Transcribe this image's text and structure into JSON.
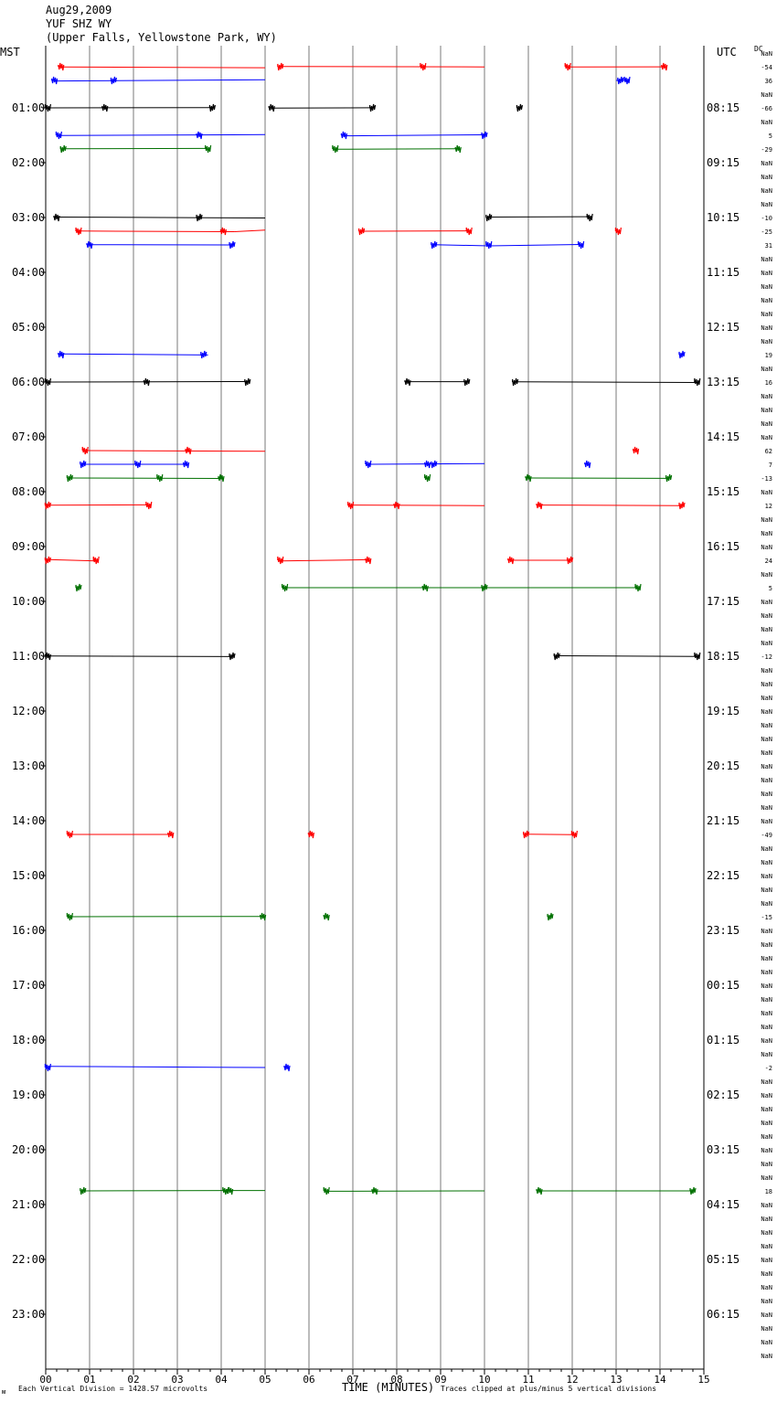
{
  "header": {
    "date": "Aug29,2009",
    "station": "YUF SHZ WY",
    "location": "(Upper Falls, Yellowstone Park, WY)"
  },
  "axes": {
    "left_title": "MST",
    "right_title": "UTC",
    "dc_title": "DC",
    "x_title": "TIME (MINUTES)",
    "scale_note": "Each Vertical Division = 1428.57 microvolts",
    "clip_note": "Traces clipped at plus/minus 5 vertical divisions",
    "corner_mark": "ᴍ"
  },
  "chart_data": {
    "type": "helicorder",
    "title": "YUF SHZ WY",
    "x_ticks": [
      "00",
      "01",
      "02",
      "03",
      "04",
      "05",
      "06",
      "07",
      "08",
      "09",
      "10",
      "11",
      "12",
      "13",
      "14",
      "15"
    ],
    "xlim": [
      0,
      15
    ],
    "mst_labels": [
      "01:00",
      "02:00",
      "03:00",
      "04:00",
      "05:00",
      "06:00",
      "07:00",
      "08:00",
      "09:00",
      "10:00",
      "11:00",
      "12:00",
      "13:00",
      "14:00",
      "15:00",
      "16:00",
      "17:00",
      "18:00",
      "19:00",
      "20:00",
      "21:00",
      "22:00",
      "23:00"
    ],
    "utc_labels": [
      "08:15",
      "09:15",
      "10:15",
      "11:15",
      "12:15",
      "13:15",
      "14:15",
      "15:15",
      "16:15",
      "17:15",
      "18:15",
      "19:15",
      "20:15",
      "21:15",
      "22:15",
      "23:15",
      "00:15",
      "01:15",
      "02:15",
      "03:15",
      "04:15",
      "05:15",
      "06:15"
    ],
    "dc_offsets": [
      "NaN",
      "-54",
      "36",
      "NaN",
      "-66",
      "NaN",
      "5",
      "-29",
      "NaN",
      "NaN",
      "NaN",
      "NaN",
      "-10",
      "-25",
      "31",
      "NaN",
      "NaN",
      "NaN",
      "NaN",
      "NaN",
      "NaN",
      "NaN",
      "19",
      "NaN",
      "16",
      "NaN",
      "NaN",
      "NaN",
      "NaN",
      "62",
      "7",
      "-13",
      "NaN",
      "12",
      "NaN",
      "NaN",
      "NaN",
      "24",
      "NaN",
      "5",
      "NaN",
      "NaN",
      "NaN",
      "NaN",
      "-12",
      "NaN",
      "NaN",
      "NaN",
      "NaN",
      "NaN",
      "NaN",
      "NaN",
      "NaN",
      "NaN",
      "NaN",
      "NaN",
      "NaN",
      "-49",
      "NaN",
      "NaN",
      "NaN",
      "NaN",
      "NaN",
      "-15",
      "NaN",
      "NaN",
      "NaN",
      "NaN",
      "NaN",
      "NaN",
      "NaN",
      "NaN",
      "NaN",
      "NaN",
      "-2",
      "NaN",
      "NaN",
      "NaN",
      "NaN",
      "NaN",
      "NaN",
      "NaN",
      "NaN",
      "18",
      "NaN",
      "NaN",
      "NaN",
      "NaN",
      "NaN",
      "NaN",
      "NaN",
      "NaN",
      "NaN",
      "NaN",
      "NaN",
      "NaN"
    ],
    "trace_colors": [
      "#000000",
      "#ff0000",
      "#0000ff",
      "#007000"
    ],
    "segments": [
      {
        "row": 1,
        "x0": 0.3,
        "x1": 5.0,
        "y0": 0.3,
        "y1": 1.1,
        "bursts": [
          0.35
        ]
      },
      {
        "row": 1,
        "x0": 5.35,
        "x1": 10.0,
        "y0": -0.2,
        "y1": 0.2,
        "bursts": [
          5.35,
          8.6
        ]
      },
      {
        "row": 1,
        "x0": 11.9,
        "x1": 14.1,
        "y0": 0.3,
        "y1": 0.1,
        "bursts": [
          11.9,
          14.1
        ]
      },
      {
        "row": 2,
        "x0": 0.2,
        "x1": 5.0,
        "y0": 0.6,
        "y1": -0.7,
        "bursts": [
          0.2,
          1.55
        ]
      },
      {
        "row": 2,
        "x0": 13.0,
        "x1": 13.25,
        "y0": 0.0,
        "y1": 0.0,
        "bursts": [
          13.1,
          13.25
        ]
      },
      {
        "row": 4,
        "x0": 0.0,
        "x1": 3.8,
        "y0": 0.0,
        "y1": -0.3,
        "bursts": [
          0.05,
          1.35,
          3.8
        ]
      },
      {
        "row": 4,
        "x0": 5.15,
        "x1": 7.45,
        "y0": 0.3,
        "y1": -0.1,
        "bursts": [
          5.15,
          7.45
        ]
      },
      {
        "row": 4,
        "x0": 10.8,
        "x1": 10.85,
        "y0": 0.0,
        "y1": 0.0,
        "bursts": [
          10.8
        ]
      },
      {
        "row": 6,
        "x0": 0.3,
        "x1": 5.0,
        "y0": 0.3,
        "y1": -0.7,
        "bursts": [
          0.3,
          3.5
        ]
      },
      {
        "row": 6,
        "x0": 6.8,
        "x1": 10.0,
        "y0": 0.6,
        "y1": -0.5,
        "bursts": [
          6.8,
          10.0
        ]
      },
      {
        "row": 7,
        "x0": 0.4,
        "x1": 3.7,
        "y0": -0.3,
        "y1": -0.6,
        "bursts": [
          0.4,
          3.7
        ]
      },
      {
        "row": 7,
        "x0": 6.6,
        "x1": 9.4,
        "y0": 0.3,
        "y1": -0.3,
        "bursts": [
          6.6,
          9.4
        ]
      },
      {
        "row": 12,
        "x0": 0.25,
        "x1": 5.0,
        "y0": -0.5,
        "y1": 0.5,
        "bursts": [
          0.25,
          3.5
        ]
      },
      {
        "row": 12,
        "x0": 10.1,
        "x1": 12.4,
        "y0": -0.5,
        "y1": -0.9,
        "bursts": [
          10.1,
          12.4
        ]
      },
      {
        "row": 13,
        "x0": 0.75,
        "x1": 4.3,
        "y0": -0.2,
        "y1": 0.5,
        "bursts": [
          0.75,
          4.05
        ]
      },
      {
        "row": 13,
        "x0": 4.3,
        "x1": 5.0,
        "y0": 0.5,
        "y1": -1.2,
        "bursts": []
      },
      {
        "row": 13,
        "x0": 7.2,
        "x1": 9.7,
        "y0": 0.0,
        "y1": -0.4,
        "bursts": [
          7.2,
          9.65
        ]
      },
      {
        "row": 13,
        "x0": 13.05,
        "x1": 13.1,
        "y0": 0.0,
        "y1": 0.0,
        "bursts": [
          13.05
        ]
      },
      {
        "row": 14,
        "x0": 1.0,
        "x1": 4.25,
        "y0": -0.3,
        "y1": 0.0,
        "bursts": [
          1.0,
          4.25
        ]
      },
      {
        "row": 14,
        "x0": 8.85,
        "x1": 10.1,
        "y0": -0.3,
        "y1": 1.0,
        "bursts": [
          8.85,
          10.1
        ]
      },
      {
        "row": 14,
        "x0": 10.1,
        "x1": 12.2,
        "y0": 1.0,
        "y1": -0.5,
        "bursts": [
          12.2
        ]
      },
      {
        "row": 22,
        "x0": 0.35,
        "x1": 3.7,
        "y0": -0.8,
        "y1": 0.4,
        "bursts": [
          0.35,
          3.6
        ]
      },
      {
        "row": 22,
        "x0": 14.5,
        "x1": 14.55,
        "y0": 0.0,
        "y1": 0.0,
        "bursts": [
          14.5
        ]
      },
      {
        "row": 24,
        "x0": 0.05,
        "x1": 4.6,
        "y0": 0.0,
        "y1": -0.5,
        "bursts": [
          0.05,
          2.3,
          4.6
        ]
      },
      {
        "row": 24,
        "x0": 8.25,
        "x1": 9.6,
        "y0": -0.4,
        "y1": -0.4,
        "bursts": [
          8.25,
          9.6
        ]
      },
      {
        "row": 24,
        "x0": 10.7,
        "x1": 14.85,
        "y0": -0.3,
        "y1": 0.5,
        "bursts": [
          10.7,
          14.85
        ]
      },
      {
        "row": 29,
        "x0": 0.9,
        "x1": 5.0,
        "y0": 0.0,
        "y1": 0.8,
        "bursts": [
          0.9,
          3.25
        ]
      },
      {
        "row": 29,
        "x0": 13.45,
        "x1": 13.5,
        "y0": 0.0,
        "y1": 0.0,
        "bursts": [
          13.45
        ]
      },
      {
        "row": 30,
        "x0": 0.85,
        "x1": 3.2,
        "y0": 0.0,
        "y1": 0.0,
        "bursts": [
          0.85,
          2.1,
          3.2
        ]
      },
      {
        "row": 30,
        "x0": 7.35,
        "x1": 10.0,
        "y0": 0.0,
        "y1": -0.8,
        "bursts": [
          7.35,
          8.7,
          8.85
        ]
      },
      {
        "row": 30,
        "x0": 12.35,
        "x1": 12.4,
        "y0": 0.0,
        "y1": 0.0,
        "bursts": [
          12.35
        ]
      },
      {
        "row": 31,
        "x0": 0.55,
        "x1": 4.0,
        "y0": 0.0,
        "y1": 0.5,
        "bursts": [
          0.55,
          2.6,
          4.0
        ]
      },
      {
        "row": 31,
        "x0": 8.7,
        "x1": 8.75,
        "y0": 0.0,
        "y1": 0.0,
        "bursts": [
          8.7
        ]
      },
      {
        "row": 31,
        "x0": 11.0,
        "x1": 14.2,
        "y0": 0.0,
        "y1": 0.4,
        "bursts": [
          11.0,
          14.2
        ]
      },
      {
        "row": 33,
        "x0": 0.05,
        "x1": 2.35,
        "y0": -0.3,
        "y1": -0.6,
        "bursts": [
          0.05,
          2.35
        ]
      },
      {
        "row": 33,
        "x0": 6.95,
        "x1": 10.0,
        "y0": -0.4,
        "y1": 0.2,
        "bursts": [
          6.95,
          8.0
        ]
      },
      {
        "row": 33,
        "x0": 11.25,
        "x1": 14.5,
        "y0": -0.4,
        "y1": 0.3,
        "bursts": [
          11.25,
          14.5
        ]
      },
      {
        "row": 37,
        "x0": 0.05,
        "x1": 1.15,
        "y0": -0.8,
        "y1": 0.7,
        "bursts": [
          0.05,
          1.15
        ]
      },
      {
        "row": 37,
        "x0": 5.35,
        "x1": 7.35,
        "y0": 0.8,
        "y1": -0.6,
        "bursts": [
          5.35,
          7.35
        ]
      },
      {
        "row": 37,
        "x0": 10.6,
        "x1": 11.95,
        "y0": 0.0,
        "y1": 0.0,
        "bursts": [
          10.6,
          11.95
        ]
      },
      {
        "row": 39,
        "x0": 0.7,
        "x1": 0.8,
        "y0": 0.0,
        "y1": 0.0,
        "bursts": [
          0.75
        ]
      },
      {
        "row": 39,
        "x0": 5.45,
        "x1": 13.5,
        "y0": 0.0,
        "y1": 0.0,
        "bursts": [
          5.45,
          8.65,
          10.0,
          13.5
        ]
      },
      {
        "row": 44,
        "x0": 0.05,
        "x1": 4.25,
        "y0": -0.3,
        "y1": 0.4,
        "bursts": [
          0.05,
          4.25
        ]
      },
      {
        "row": 44,
        "x0": 11.65,
        "x1": 14.85,
        "y0": -0.5,
        "y1": 0.2,
        "bursts": [
          11.65,
          14.85
        ]
      },
      {
        "row": 57,
        "x0": 0.55,
        "x1": 2.9,
        "y0": 0.0,
        "y1": 0.0,
        "bursts": [
          0.55,
          2.85
        ]
      },
      {
        "row": 57,
        "x0": 6.05,
        "x1": 6.1,
        "y0": 0.0,
        "y1": 0.0,
        "bursts": [
          6.05
        ]
      },
      {
        "row": 57,
        "x0": 10.95,
        "x1": 12.05,
        "y0": -0.2,
        "y1": 0.3,
        "bursts": [
          10.95,
          12.05
        ]
      },
      {
        "row": 63,
        "x0": 0.55,
        "x1": 4.95,
        "y0": 0.0,
        "y1": -0.3,
        "bursts": [
          0.55,
          4.95
        ]
      },
      {
        "row": 63,
        "x0": 6.4,
        "x1": 6.45,
        "y0": 0.0,
        "y1": 0.0,
        "bursts": [
          6.4
        ]
      },
      {
        "row": 63,
        "x0": 11.5,
        "x1": 11.55,
        "y0": 0.0,
        "y1": 0.0,
        "bursts": [
          11.5
        ]
      },
      {
        "row": 74,
        "x0": 0.05,
        "x1": 5.0,
        "y0": -1.2,
        "y1": 0.0,
        "bursts": [
          0.05
        ]
      },
      {
        "row": 74,
        "x0": 5.5,
        "x1": 5.55,
        "y0": 0.0,
        "y1": 0.0,
        "bursts": [
          5.5
        ]
      },
      {
        "row": 83,
        "x0": 0.85,
        "x1": 5.0,
        "y0": 0.0,
        "y1": -0.4,
        "bursts": [
          0.85,
          4.1,
          4.2
        ]
      },
      {
        "row": 83,
        "x0": 6.4,
        "x1": 10.0,
        "y0": 0.4,
        "y1": 0.0,
        "bursts": [
          6.4,
          7.5
        ]
      },
      {
        "row": 83,
        "x0": 11.25,
        "x1": 14.75,
        "y0": 0.0,
        "y1": 0.0,
        "bursts": [
          11.25,
          14.75
        ]
      }
    ]
  }
}
